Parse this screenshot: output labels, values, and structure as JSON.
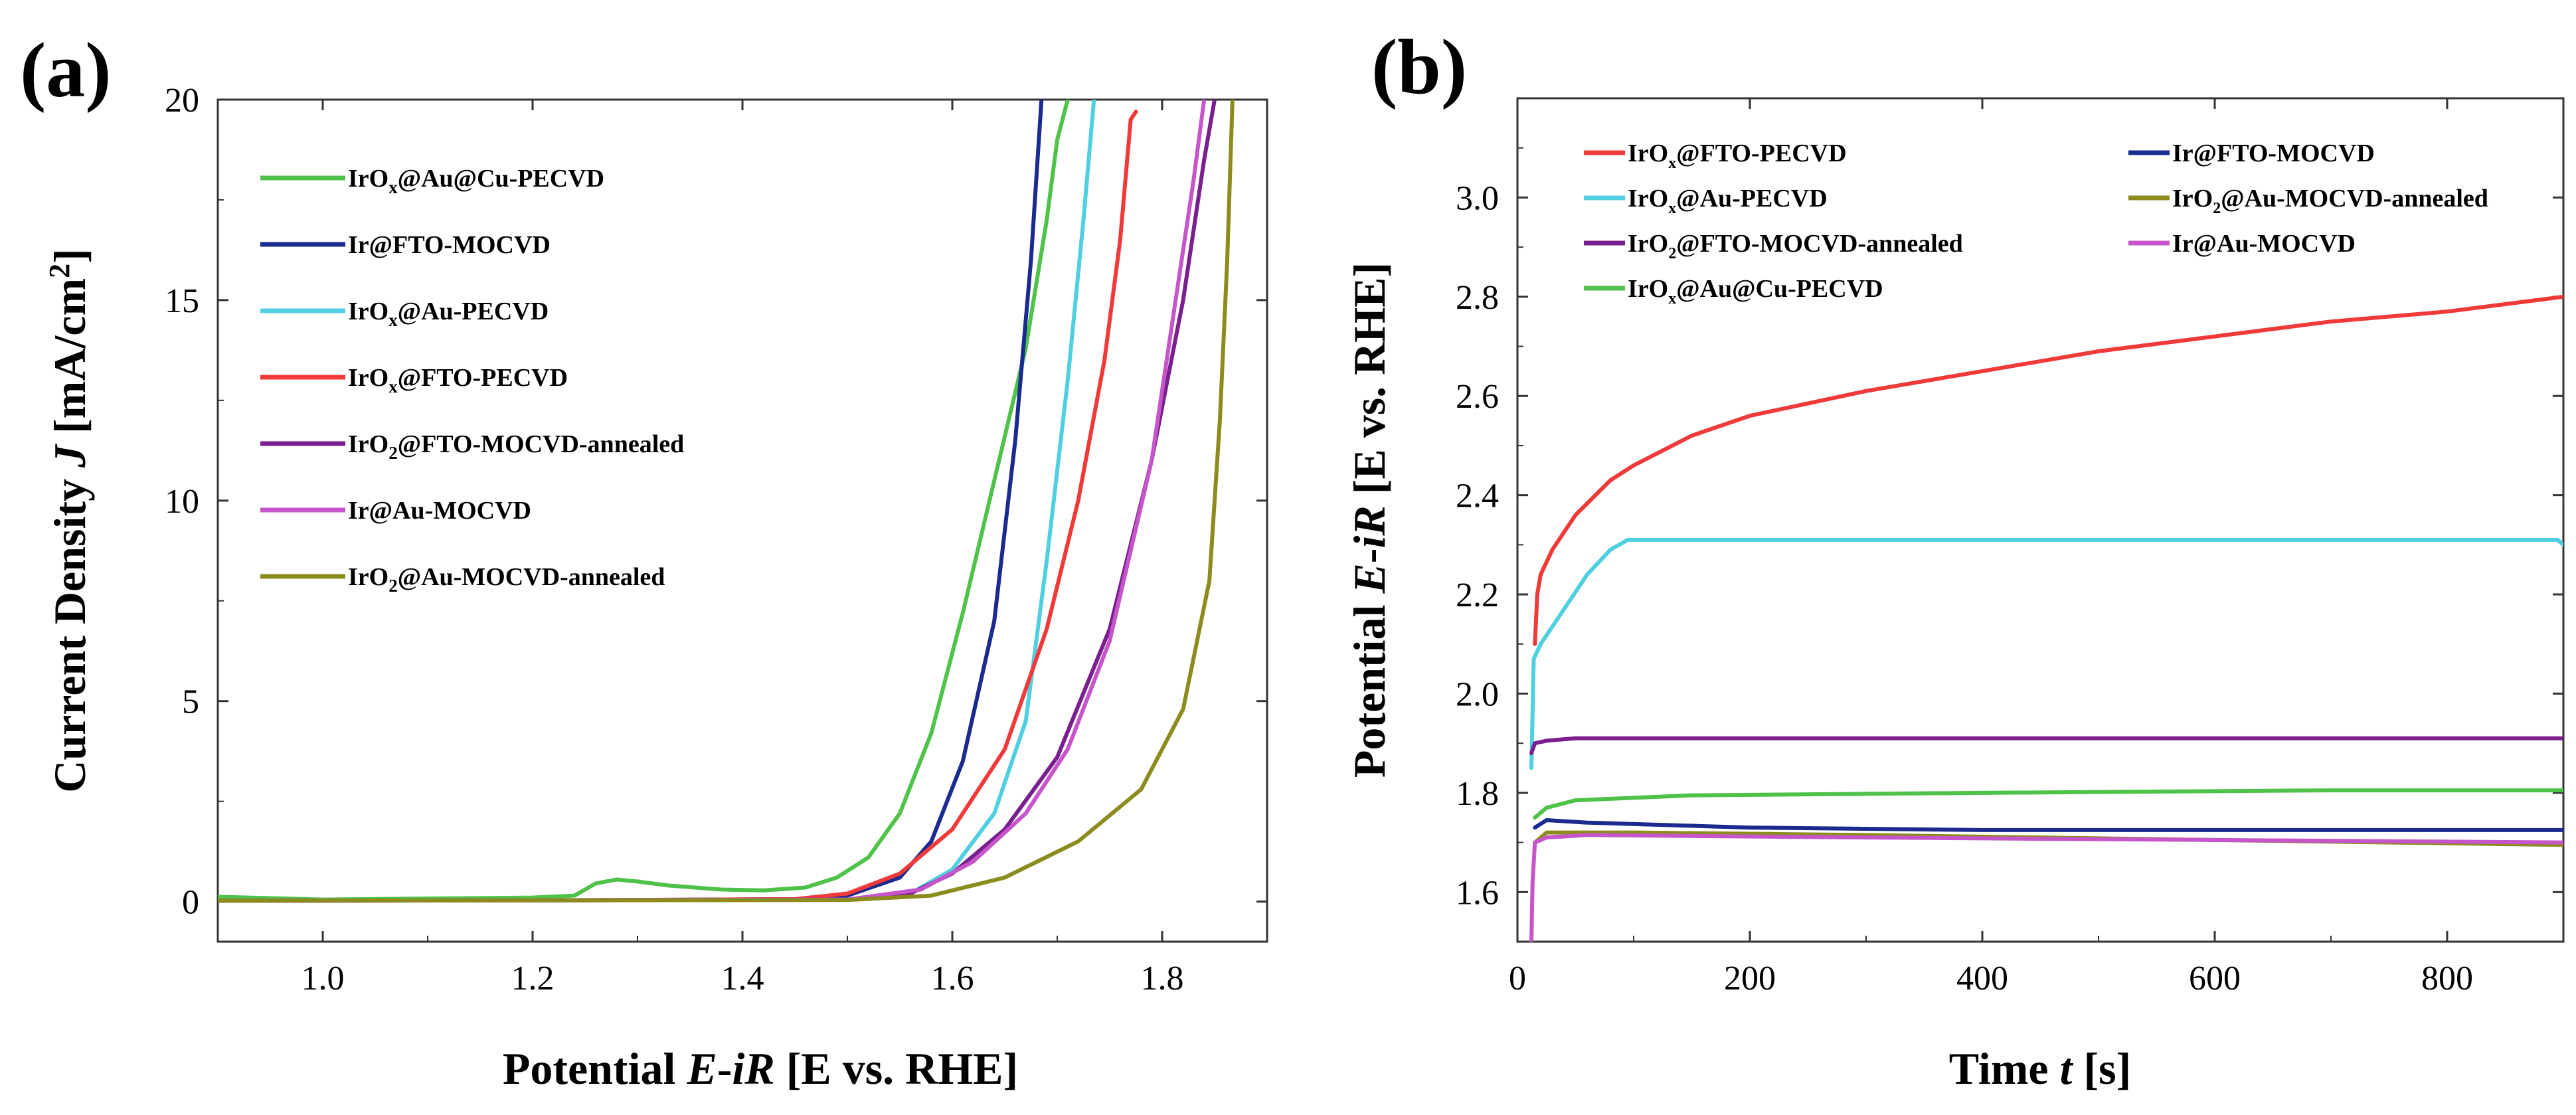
{
  "chart_data": [
    {
      "type": "line",
      "panel_label": "(a)",
      "xlabel": "Potential E-iR [E vs. RHE]",
      "ylabel": "Current Density J [mA/cm²]",
      "xlim": [
        0.9,
        1.9
      ],
      "ylim": [
        -1,
        20
      ],
      "xticks": [
        1.0,
        1.2,
        1.4,
        1.6,
        1.8
      ],
      "xtick_labels": [
        "1.0",
        "1.2",
        "1.4",
        "1.6",
        "1.8"
      ],
      "yticks": [
        0,
        5,
        10,
        15,
        20
      ],
      "ytick_labels": [
        "0",
        "5",
        "10",
        "15",
        "20"
      ],
      "legend_position": "top-left",
      "series": [
        {
          "name": "IrOx@Au@Cu-PECVD",
          "label_main": "IrO",
          "label_sub": "x",
          "label_rest": "@Au@Cu-PECVD",
          "color": "#4fc24a",
          "points": [
            [
              0.9,
              0.12
            ],
            [
              1.0,
              0.05
            ],
            [
              1.2,
              0.1
            ],
            [
              1.24,
              0.15
            ],
            [
              1.26,
              0.45
            ],
            [
              1.28,
              0.55
            ],
            [
              1.3,
              0.5
            ],
            [
              1.33,
              0.4
            ],
            [
              1.38,
              0.3
            ],
            [
              1.42,
              0.28
            ],
            [
              1.46,
              0.35
            ],
            [
              1.49,
              0.6
            ],
            [
              1.52,
              1.1
            ],
            [
              1.55,
              2.2
            ],
            [
              1.58,
              4.2
            ],
            [
              1.61,
              7.2
            ],
            [
              1.64,
              10.5
            ],
            [
              1.67,
              13.8
            ],
            [
              1.69,
              17.0
            ],
            [
              1.7,
              19.0
            ],
            [
              1.71,
              20.0
            ]
          ]
        },
        {
          "name": "Ir@FTO-MOCVD",
          "label_main": "Ir@FTO-MOCVD",
          "label_sub": "",
          "label_rest": "",
          "color": "#1a2a8f",
          "points": [
            [
              0.9,
              0.02
            ],
            [
              1.2,
              0.03
            ],
            [
              1.45,
              0.06
            ],
            [
              1.5,
              0.15
            ],
            [
              1.55,
              0.6
            ],
            [
              1.58,
              1.5
            ],
            [
              1.61,
              3.5
            ],
            [
              1.64,
              7.0
            ],
            [
              1.66,
              11.5
            ],
            [
              1.675,
              16.0
            ],
            [
              1.685,
              20.0
            ]
          ]
        },
        {
          "name": "IrOx@Au-PECVD",
          "label_main": "IrO",
          "label_sub": "x",
          "label_rest": "@Au-PECVD",
          "color": "#4fcfe0",
          "points": [
            [
              0.9,
              0.02
            ],
            [
              1.2,
              0.03
            ],
            [
              1.5,
              0.05
            ],
            [
              1.56,
              0.2
            ],
            [
              1.6,
              0.8
            ],
            [
              1.64,
              2.2
            ],
            [
              1.67,
              4.5
            ],
            [
              1.69,
              8.5
            ],
            [
              1.71,
              13.0
            ],
            [
              1.725,
              17.0
            ],
            [
              1.735,
              20.0
            ]
          ]
        },
        {
          "name": "IrOx@FTO-PECVD",
          "label_main": "IrO",
          "label_sub": "x",
          "label_rest": "@FTO-PECVD",
          "color": "#f03a3a",
          "points": [
            [
              0.9,
              0.02
            ],
            [
              1.2,
              0.03
            ],
            [
              1.45,
              0.06
            ],
            [
              1.5,
              0.2
            ],
            [
              1.55,
              0.7
            ],
            [
              1.6,
              1.8
            ],
            [
              1.65,
              3.8
            ],
            [
              1.69,
              6.8
            ],
            [
              1.72,
              10.0
            ],
            [
              1.745,
              13.5
            ],
            [
              1.76,
              16.5
            ],
            [
              1.77,
              19.5
            ],
            [
              1.775,
              19.7
            ]
          ]
        },
        {
          "name": "IrO2@FTO-MOCVD-annealed",
          "label_main": "IrO",
          "label_sub": "2",
          "label_rest": "@FTO-MOCVD-annealed",
          "color": "#7a1f8e",
          "points": [
            [
              0.9,
              0.02
            ],
            [
              1.2,
              0.03
            ],
            [
              1.5,
              0.05
            ],
            [
              1.56,
              0.2
            ],
            [
              1.6,
              0.7
            ],
            [
              1.65,
              1.8
            ],
            [
              1.7,
              3.6
            ],
            [
              1.75,
              6.8
            ],
            [
              1.79,
              11.0
            ],
            [
              1.82,
              15.0
            ],
            [
              1.84,
              18.5
            ],
            [
              1.85,
              20.0
            ]
          ]
        },
        {
          "name": "Ir@Au-MOCVD",
          "label_main": "Ir@Au-MOCVD",
          "label_sub": "",
          "label_rest": "",
          "color": "#c555c9",
          "points": [
            [
              0.9,
              0.02
            ],
            [
              1.2,
              0.03
            ],
            [
              1.5,
              0.05
            ],
            [
              1.57,
              0.3
            ],
            [
              1.62,
              1.0
            ],
            [
              1.67,
              2.2
            ],
            [
              1.71,
              3.8
            ],
            [
              1.75,
              6.5
            ],
            [
              1.79,
              11.0
            ],
            [
              1.81,
              14.5
            ],
            [
              1.83,
              18.0
            ],
            [
              1.84,
              20.0
            ]
          ]
        },
        {
          "name": "IrO2@Au-MOCVD-annealed",
          "label_main": "IrO",
          "label_sub": "2",
          "label_rest": "@Au-MOCVD-annealed",
          "color": "#8c8c1e",
          "points": [
            [
              0.9,
              0.02
            ],
            [
              1.2,
              0.03
            ],
            [
              1.5,
              0.04
            ],
            [
              1.58,
              0.15
            ],
            [
              1.65,
              0.6
            ],
            [
              1.72,
              1.5
            ],
            [
              1.78,
              2.8
            ],
            [
              1.82,
              4.8
            ],
            [
              1.845,
              8.0
            ],
            [
              1.855,
              12.0
            ],
            [
              1.862,
              16.0
            ],
            [
              1.867,
              20.0
            ]
          ]
        }
      ]
    },
    {
      "type": "line",
      "panel_label": "(b)",
      "xlabel": "Time t [s]",
      "ylabel": "Potential E-iR [E vs. RHE]",
      "xlim": [
        0,
        900
      ],
      "ylim": [
        1.5,
        3.2
      ],
      "xticks": [
        0,
        200,
        400,
        600,
        800
      ],
      "xtick_labels": [
        "0",
        "200",
        "400",
        "600",
        "800"
      ],
      "yticks": [
        1.6,
        1.8,
        2.0,
        2.2,
        2.4,
        2.6,
        2.8,
        3.0
      ],
      "ytick_labels": [
        "1.6",
        "1.8",
        "2.0",
        "2.2",
        "2.4",
        "2.6",
        "2.8",
        "3.0"
      ],
      "legend_position": "top",
      "series": [
        {
          "name": "IrOx@FTO-PECVD",
          "label_main": "IrO",
          "label_sub": "x",
          "label_rest": "@FTO-PECVD",
          "color": "#f03a3a",
          "points": [
            [
              15,
              2.1
            ],
            [
              17,
              2.2
            ],
            [
              20,
              2.24
            ],
            [
              30,
              2.29
            ],
            [
              50,
              2.36
            ],
            [
              80,
              2.43
            ],
            [
              100,
              2.46
            ],
            [
              150,
              2.52
            ],
            [
              200,
              2.56
            ],
            [
              300,
              2.61
            ],
            [
              400,
              2.65
            ],
            [
              500,
              2.69
            ],
            [
              600,
              2.72
            ],
            [
              700,
              2.75
            ],
            [
              800,
              2.77
            ],
            [
              900,
              2.8
            ]
          ]
        },
        {
          "name": "Ir@FTO-MOCVD",
          "label_main": "Ir@FTO-MOCVD",
          "label_sub": "",
          "label_rest": "",
          "color": "#1a2a8f",
          "points": [
            [
              15,
              1.73
            ],
            [
              25,
              1.745
            ],
            [
              60,
              1.74
            ],
            [
              200,
              1.73
            ],
            [
              400,
              1.725
            ],
            [
              600,
              1.725
            ],
            [
              900,
              1.725
            ]
          ]
        },
        {
          "name": "IrOx@Au-PECVD",
          "label_main": "IrO",
          "label_sub": "x",
          "label_rest": "@Au-PECVD",
          "color": "#4fcfe0",
          "points": [
            [
              12,
              1.85
            ],
            [
              14,
              2.07
            ],
            [
              20,
              2.1
            ],
            [
              40,
              2.17
            ],
            [
              60,
              2.24
            ],
            [
              80,
              2.29
            ],
            [
              95,
              2.31
            ],
            [
              120,
              2.31
            ],
            [
              400,
              2.31
            ],
            [
              700,
              2.31
            ],
            [
              895,
              2.31
            ],
            [
              900,
              2.3
            ]
          ]
        },
        {
          "name": "IrO2@Au-MOCVD-annealed",
          "label_main": "IrO",
          "label_sub": "2",
          "label_rest": "@Au-MOCVD-annealed",
          "color": "#8c8c1e",
          "points": [
            [
              15,
              1.7
            ],
            [
              25,
              1.72
            ],
            [
              100,
              1.72
            ],
            [
              300,
              1.715
            ],
            [
              600,
              1.705
            ],
            [
              900,
              1.695
            ]
          ]
        },
        {
          "name": "IrO2@FTO-MOCVD-annealed",
          "label_main": "IrO",
          "label_sub": "2",
          "label_rest": "@FTO-MOCVD-annealed",
          "color": "#7a1f8e",
          "points": [
            [
              12,
              1.88
            ],
            [
              15,
              1.9
            ],
            [
              25,
              1.905
            ],
            [
              50,
              1.91
            ],
            [
              200,
              1.91
            ],
            [
              500,
              1.91
            ],
            [
              900,
              1.91
            ]
          ]
        },
        {
          "name": "Ir@Au-MOCVD",
          "label_main": "Ir@Au-MOCVD",
          "label_sub": "",
          "label_rest": "",
          "color": "#c555c9",
          "points": [
            [
              12,
              1.5
            ],
            [
              13,
              1.62
            ],
            [
              15,
              1.7
            ],
            [
              25,
              1.71
            ],
            [
              60,
              1.715
            ],
            [
              300,
              1.71
            ],
            [
              600,
              1.705
            ],
            [
              900,
              1.7
            ]
          ]
        },
        {
          "name": "IrOx@Au@Cu-PECVD",
          "label_main": "IrO",
          "label_sub": "x",
          "label_rest": "@Au@Cu-PECVD",
          "color": "#4fc24a",
          "points": [
            [
              15,
              1.75
            ],
            [
              25,
              1.77
            ],
            [
              50,
              1.785
            ],
            [
              150,
              1.795
            ],
            [
              400,
              1.8
            ],
            [
              700,
              1.805
            ],
            [
              900,
              1.805
            ]
          ]
        }
      ]
    }
  ]
}
